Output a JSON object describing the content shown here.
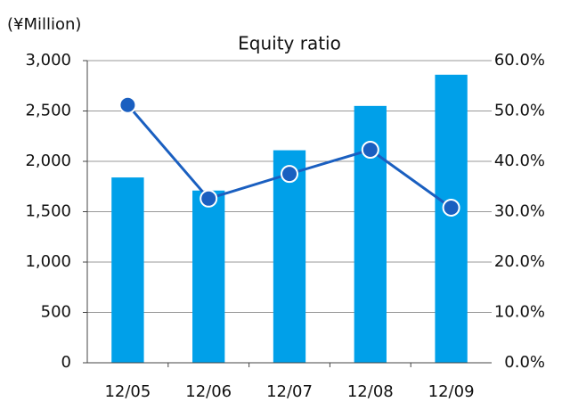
{
  "chart_data": {
    "type": "bar_line",
    "title": "Equity ratio",
    "y_label": "(¥Million)",
    "categories": [
      "12/05",
      "12/06",
      "12/07",
      "12/08",
      "12/09"
    ],
    "series": [
      {
        "type": "bar",
        "color": "#00a0e9",
        "values": [
          1840,
          1710,
          2110,
          2550,
          2860
        ]
      },
      {
        "type": "line",
        "axis": "y2",
        "color": "#1a5fc0",
        "values": [
          51.2,
          32.6,
          37.5,
          42.3,
          30.8
        ]
      }
    ],
    "ylim": [
      0,
      3000
    ],
    "yticks": [
      0,
      500,
      {
        "value": 1000,
        "label": "1,000"
      },
      {
        "value": 1500,
        "label": "1,500"
      },
      {
        "value": 2000,
        "label": "2,000"
      },
      {
        "value": 2500,
        "label": "2,500"
      },
      {
        "value": 3000,
        "label": "3,000"
      }
    ],
    "y2lim": [
      0,
      60
    ],
    "y2ticks": [
      {
        "value": 0,
        "label": "0.0%"
      },
      {
        "value": 10,
        "label": "10.0%"
      },
      {
        "value": 20,
        "label": "20.0%"
      },
      {
        "value": 30,
        "label": "30.0%"
      },
      {
        "value": 40,
        "label": "40.0%"
      },
      {
        "value": 50,
        "label": "50.0%"
      },
      {
        "value": 60,
        "label": "60.0%"
      }
    ],
    "grid": true
  }
}
